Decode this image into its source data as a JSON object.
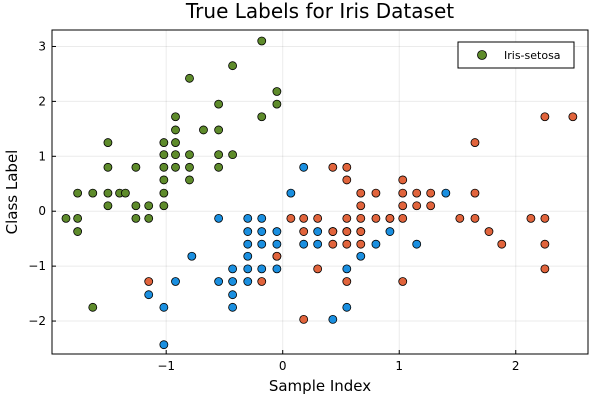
{
  "chart_data": {
    "type": "scatter",
    "title": "True Labels for Iris Dataset",
    "xlabel": "Sample Index",
    "ylabel": "Class Label",
    "xlim": [
      -1.98,
      2.62
    ],
    "ylim": [
      -2.6,
      3.3
    ],
    "xticks": [
      -1,
      0,
      1,
      2
    ],
    "xtick_labels": [
      "−1",
      "0",
      "1",
      "2"
    ],
    "yticks": [
      -2,
      -1,
      0,
      1,
      2,
      3
    ],
    "ytick_labels": [
      "−2",
      "−1",
      "0",
      "1",
      "2",
      "3"
    ],
    "grid": true,
    "legend": {
      "position": "top-right",
      "entries": [
        {
          "label": "Iris-setosa",
          "color": "#5e8b2b"
        }
      ]
    },
    "series": [
      {
        "name": "Iris-setosa",
        "color": "#5e8b2b",
        "points": [
          [
            -1.86,
            -0.13
          ],
          [
            -1.76,
            -0.13
          ],
          [
            -1.76,
            -0.37
          ],
          [
            -1.76,
            0.33
          ],
          [
            -1.63,
            0.33
          ],
          [
            -1.63,
            -1.75
          ],
          [
            -1.5,
            0.1
          ],
          [
            -1.5,
            0.33
          ],
          [
            -1.5,
            0.8
          ],
          [
            -1.5,
            1.25
          ],
          [
            -1.4,
            0.33
          ],
          [
            -1.35,
            0.33
          ],
          [
            -1.26,
            0.1
          ],
          [
            -1.26,
            -0.13
          ],
          [
            -1.26,
            0.8
          ],
          [
            -1.15,
            0.1
          ],
          [
            -1.15,
            -0.13
          ],
          [
            -1.02,
            0.1
          ],
          [
            -1.02,
            0.33
          ],
          [
            -1.02,
            0.57
          ],
          [
            -1.02,
            0.8
          ],
          [
            -1.02,
            1.03
          ],
          [
            -1.02,
            1.25
          ],
          [
            -0.92,
            0.8
          ],
          [
            -0.92,
            1.03
          ],
          [
            -0.92,
            1.25
          ],
          [
            -0.92,
            1.48
          ],
          [
            -0.92,
            1.72
          ],
          [
            -0.8,
            0.57
          ],
          [
            -0.8,
            0.8
          ],
          [
            -0.8,
            1.03
          ],
          [
            -0.8,
            2.42
          ],
          [
            -0.68,
            1.48
          ],
          [
            -0.55,
            0.8
          ],
          [
            -0.55,
            1.03
          ],
          [
            -0.55,
            1.48
          ],
          [
            -0.55,
            1.95
          ],
          [
            -0.43,
            1.03
          ],
          [
            -0.43,
            2.65
          ],
          [
            -0.18,
            1.72
          ],
          [
            -0.18,
            3.1
          ],
          [
            -0.05,
            1.95
          ],
          [
            -0.05,
            2.18
          ]
        ]
      },
      {
        "color": "#1a8fe0",
        "points": [
          [
            -1.15,
            -1.52
          ],
          [
            -1.02,
            -1.75
          ],
          [
            -1.02,
            -2.43
          ],
          [
            -0.92,
            -1.28
          ],
          [
            -0.78,
            -0.82
          ],
          [
            -0.55,
            -0.13
          ],
          [
            -0.55,
            -1.28
          ],
          [
            -0.43,
            -1.05
          ],
          [
            -0.43,
            -1.28
          ],
          [
            -0.43,
            -1.52
          ],
          [
            -0.43,
            -1.75
          ],
          [
            -0.3,
            -0.13
          ],
          [
            -0.3,
            -0.37
          ],
          [
            -0.3,
            -0.6
          ],
          [
            -0.3,
            -0.82
          ],
          [
            -0.3,
            -1.05
          ],
          [
            -0.3,
            -1.28
          ],
          [
            -0.18,
            -0.13
          ],
          [
            -0.18,
            -0.37
          ],
          [
            -0.18,
            -0.6
          ],
          [
            -0.18,
            -1.05
          ],
          [
            -0.05,
            -0.37
          ],
          [
            -0.05,
            -0.6
          ],
          [
            -0.05,
            -0.82
          ],
          [
            -0.05,
            -1.05
          ],
          [
            0.07,
            0.33
          ],
          [
            0.18,
            -0.6
          ],
          [
            0.18,
            0.8
          ],
          [
            0.3,
            -0.37
          ],
          [
            0.3,
            -0.6
          ],
          [
            0.43,
            -0.37
          ],
          [
            0.43,
            -1.97
          ],
          [
            0.55,
            -1.05
          ],
          [
            0.55,
            -1.75
          ],
          [
            0.55,
            -0.37
          ],
          [
            0.67,
            -0.37
          ],
          [
            0.67,
            -0.82
          ],
          [
            0.8,
            -0.6
          ],
          [
            0.92,
            -0.37
          ],
          [
            0.92,
            -0.13
          ],
          [
            1.15,
            -0.6
          ],
          [
            1.4,
            0.33
          ]
        ]
      },
      {
        "color": "#e1643c",
        "points": [
          [
            -1.15,
            -1.28
          ],
          [
            -0.18,
            -1.28
          ],
          [
            -0.05,
            -0.82
          ],
          [
            0.07,
            -0.13
          ],
          [
            0.18,
            -0.13
          ],
          [
            0.18,
            -1.97
          ],
          [
            0.18,
            -0.37
          ],
          [
            0.3,
            -0.13
          ],
          [
            0.3,
            -1.05
          ],
          [
            0.43,
            -0.37
          ],
          [
            0.43,
            -0.6
          ],
          [
            0.43,
            0.8
          ],
          [
            0.55,
            -0.13
          ],
          [
            0.55,
            -0.37
          ],
          [
            0.55,
            -0.6
          ],
          [
            0.55,
            0.57
          ],
          [
            0.55,
            0.8
          ],
          [
            0.55,
            -1.28
          ],
          [
            0.67,
            -0.13
          ],
          [
            0.67,
            -0.37
          ],
          [
            0.67,
            -0.6
          ],
          [
            0.67,
            0.1
          ],
          [
            0.67,
            0.33
          ],
          [
            0.8,
            0.33
          ],
          [
            0.8,
            -0.13
          ],
          [
            0.92,
            -0.13
          ],
          [
            1.03,
            -0.13
          ],
          [
            1.03,
            0.1
          ],
          [
            1.03,
            0.33
          ],
          [
            1.03,
            0.57
          ],
          [
            1.03,
            -1.28
          ],
          [
            1.15,
            0.1
          ],
          [
            1.15,
            0.33
          ],
          [
            1.27,
            0.1
          ],
          [
            1.27,
            0.33
          ],
          [
            1.52,
            -0.13
          ],
          [
            1.65,
            -0.13
          ],
          [
            1.65,
            0.33
          ],
          [
            1.65,
            1.25
          ],
          [
            1.77,
            -0.37
          ],
          [
            1.88,
            -0.6
          ],
          [
            2.13,
            -0.13
          ],
          [
            2.25,
            -0.13
          ],
          [
            2.25,
            -0.6
          ],
          [
            2.25,
            -1.05
          ],
          [
            2.25,
            1.72
          ],
          [
            2.49,
            1.72
          ]
        ]
      }
    ]
  }
}
